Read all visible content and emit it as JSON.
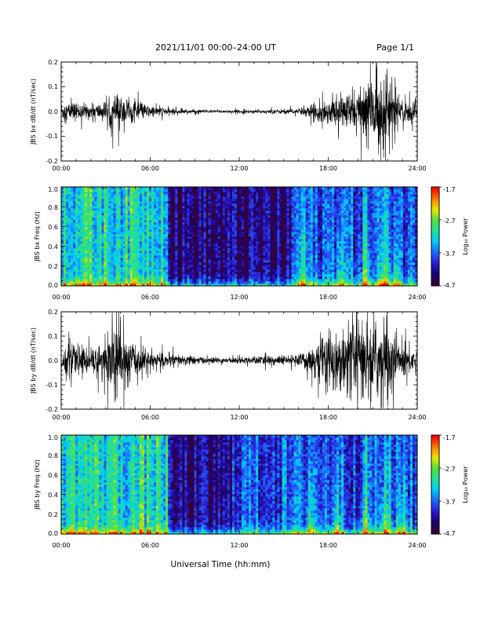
{
  "header": {
    "title": "2021/11/01  00:00–24:00 UT",
    "page": "Page 1/1"
  },
  "xlabel": "Universal Time (hh:mm)",
  "colorbar_label": "Log₁₀ Power",
  "colorbar_ticks": [
    "-1.7",
    "-2.7",
    "-3.7",
    "-4.7"
  ],
  "colors": {
    "trace": "#000000",
    "spectrogram_scale": [
      "#3a0030",
      "#1b006b",
      "#2a1bd2",
      "#1f64ff",
      "#00c8ff",
      "#20e0a0",
      "#50e040",
      "#e8e800",
      "#ff7a00",
      "#ff0000"
    ]
  },
  "chart_data": [
    {
      "type": "line",
      "title": "",
      "ylabel": "JBS bx dB/dt (nT/sec)",
      "xlabel": "",
      "xlim": [
        0,
        24
      ],
      "ylim": [
        -0.2,
        0.2
      ],
      "x_tick_labels": [
        "00:00",
        "06:00",
        "12:00",
        "18:00",
        "24:00"
      ],
      "y_tick_labels": [
        "-0.2",
        "-0.1",
        "0.0",
        "0.1",
        "0.2"
      ],
      "grid": false,
      "envelope": {
        "hours": [
          0,
          1,
          2,
          3,
          3.5,
          4,
          4.5,
          5,
          6,
          7,
          8,
          9,
          10,
          11,
          12,
          13,
          14,
          15,
          16,
          17,
          17.5,
          18,
          19,
          20,
          20.5,
          21,
          21.5,
          22,
          22.5,
          23,
          24
        ],
        "amplitude_nT_per_sec": [
          0.05,
          0.045,
          0.035,
          0.05,
          0.09,
          0.08,
          0.07,
          0.05,
          0.03,
          0.02,
          0.012,
          0.01,
          0.008,
          0.008,
          0.008,
          0.008,
          0.01,
          0.012,
          0.015,
          0.035,
          0.06,
          0.06,
          0.08,
          0.12,
          0.18,
          0.2,
          0.18,
          0.2,
          0.12,
          0.07,
          0.05
        ]
      }
    },
    {
      "type": "heatmap",
      "title": "",
      "ylabel": "JBS bx Freq (Hz)",
      "xlabel": "",
      "xlim": [
        0,
        24
      ],
      "ylim": [
        0,
        1.0
      ],
      "x_tick_labels": [
        "00:00",
        "06:00",
        "12:00",
        "18:00",
        "24:00"
      ],
      "y_tick_labels": [
        "0.0",
        "0.2",
        "0.4",
        "0.6",
        "0.8",
        "1.0"
      ],
      "color_range_log10_power": [
        -4.7,
        -1.7
      ],
      "features": {
        "broadband_until_hour": 7.2,
        "quiet_from_hour": 7.2,
        "quiet_until_hour": 15.5,
        "activity_peaks_hours": [
          16.3,
          18.8,
          20.5,
          21.7,
          22.5
        ]
      }
    },
    {
      "type": "line",
      "title": "",
      "ylabel": "JBS by dB/dt (nT/sec)",
      "xlabel": "",
      "xlim": [
        0,
        24
      ],
      "ylim": [
        -0.2,
        0.2
      ],
      "x_tick_labels": [
        "00:00",
        "06:00",
        "12:00",
        "18:00",
        "24:00"
      ],
      "y_tick_labels": [
        "-0.2",
        "-0.1",
        "0.0",
        "0.1",
        "0.2"
      ],
      "grid": false,
      "envelope": {
        "hours": [
          0,
          0.5,
          1,
          2,
          3,
          3.5,
          4,
          4.5,
          5,
          6,
          7,
          8,
          9,
          10,
          11,
          12,
          13,
          14,
          15,
          16,
          17,
          17.5,
          18,
          19,
          20,
          20.5,
          21,
          22,
          22.5,
          23,
          24
        ],
        "amplitude_nT_per_sec": [
          0.08,
          0.1,
          0.07,
          0.07,
          0.1,
          0.2,
          0.2,
          0.12,
          0.08,
          0.05,
          0.035,
          0.03,
          0.02,
          0.015,
          0.015,
          0.015,
          0.02,
          0.025,
          0.025,
          0.03,
          0.08,
          0.12,
          0.15,
          0.15,
          0.2,
          0.2,
          0.2,
          0.2,
          0.15,
          0.1,
          0.06
        ]
      }
    },
    {
      "type": "heatmap",
      "title": "",
      "ylabel": "JBS by Freq (Hz)",
      "xlabel": "",
      "xlim": [
        0,
        24
      ],
      "ylim": [
        0,
        1.0
      ],
      "x_tick_labels": [
        "00:00",
        "06:00",
        "12:00",
        "18:00",
        "24:00"
      ],
      "y_tick_labels": [
        "0.0",
        "0.2",
        "0.4",
        "0.6",
        "0.8",
        "1.0"
      ],
      "color_range_log10_power": [
        -4.7,
        -1.7
      ],
      "features": {
        "broadband_until_hour": 7.2,
        "quiet_from_hour": 7.2,
        "quiet_until_hour": 11.5,
        "activity_peaks_hours": [
          16.8,
          18.6,
          20.5,
          21.8,
          23.0
        ]
      }
    }
  ]
}
